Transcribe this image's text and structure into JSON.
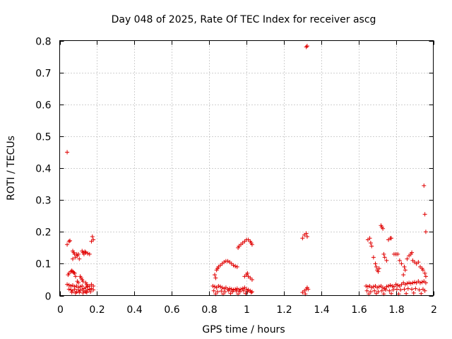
{
  "chart_data": {
    "type": "scatter",
    "title": "Day 048 of 2025, Rate Of TEC Index for receiver ascg",
    "xlabel": "GPS time / hours",
    "ylabel": "ROTI / TECUs",
    "xlim": [
      0,
      2
    ],
    "ylim": [
      0,
      0.8
    ],
    "x_ticks": [
      0,
      0.2,
      0.4,
      0.6,
      0.8,
      1,
      1.2,
      1.4,
      1.6,
      1.8,
      2
    ],
    "x_tick_labels": [
      "0",
      "0.2",
      "0.4",
      "0.6",
      "0.8",
      "1",
      "1.2",
      "1.4",
      "1.6",
      "1.8",
      "2"
    ],
    "y_ticks": [
      0,
      0.1,
      0.2,
      0.3,
      0.4,
      0.5,
      0.6,
      0.7,
      0.8
    ],
    "y_tick_labels": [
      "0",
      "0.1",
      "0.2",
      "0.3",
      "0.4",
      "0.5",
      "0.6",
      "0.7",
      "0.8"
    ],
    "grid": true,
    "marker": "+",
    "color": "#e00000",
    "points": [
      [
        0.04,
        0.45
      ],
      [
        0.04,
        0.16
      ],
      [
        0.05,
        0.17
      ],
      [
        0.055,
        0.172
      ],
      [
        0.045,
        0.065
      ],
      [
        0.05,
        0.07
      ],
      [
        0.06,
        0.075
      ],
      [
        0.065,
        0.078
      ],
      [
        0.07,
        0.075
      ],
      [
        0.075,
        0.072
      ],
      [
        0.08,
        0.07
      ],
      [
        0.085,
        0.06
      ],
      [
        0.07,
        0.14
      ],
      [
        0.075,
        0.135
      ],
      [
        0.08,
        0.13
      ],
      [
        0.085,
        0.12
      ],
      [
        0.07,
        0.115
      ],
      [
        0.09,
        0.13
      ],
      [
        0.095,
        0.125
      ],
      [
        0.1,
        0.13
      ],
      [
        0.105,
        0.115
      ],
      [
        0.12,
        0.14
      ],
      [
        0.125,
        0.135
      ],
      [
        0.13,
        0.13
      ],
      [
        0.135,
        0.138
      ],
      [
        0.14,
        0.135
      ],
      [
        0.15,
        0.132
      ],
      [
        0.16,
        0.13
      ],
      [
        0.17,
        0.17
      ],
      [
        0.175,
        0.185
      ],
      [
        0.18,
        0.175
      ],
      [
        0.11,
        0.06
      ],
      [
        0.115,
        0.055
      ],
      [
        0.12,
        0.05
      ],
      [
        0.125,
        0.045
      ],
      [
        0.1,
        0.04
      ],
      [
        0.095,
        0.045
      ],
      [
        0.14,
        0.04
      ],
      [
        0.145,
        0.035
      ],
      [
        0.15,
        0.03
      ],
      [
        0.04,
        0.035
      ],
      [
        0.05,
        0.033
      ],
      [
        0.06,
        0.03
      ],
      [
        0.07,
        0.032
      ],
      [
        0.08,
        0.028
      ],
      [
        0.09,
        0.03
      ],
      [
        0.1,
        0.025
      ],
      [
        0.11,
        0.028
      ],
      [
        0.12,
        0.03
      ],
      [
        0.13,
        0.022
      ],
      [
        0.14,
        0.025
      ],
      [
        0.15,
        0.028
      ],
      [
        0.16,
        0.03
      ],
      [
        0.17,
        0.035
      ],
      [
        0.18,
        0.03
      ],
      [
        0.05,
        0.02
      ],
      [
        0.06,
        0.018
      ],
      [
        0.07,
        0.015
      ],
      [
        0.08,
        0.02
      ],
      [
        0.09,
        0.012
      ],
      [
        0.1,
        0.018
      ],
      [
        0.11,
        0.015
      ],
      [
        0.12,
        0.02
      ],
      [
        0.13,
        0.015
      ],
      [
        0.14,
        0.012
      ],
      [
        0.15,
        0.018
      ],
      [
        0.16,
        0.02
      ],
      [
        0.17,
        0.022
      ],
      [
        0.18,
        0.018
      ],
      [
        0.065,
        0.01
      ],
      [
        0.085,
        0.008
      ],
      [
        0.105,
        0.01
      ],
      [
        0.125,
        0.008
      ],
      [
        0.145,
        0.01
      ],
      [
        0.165,
        0.012
      ],
      [
        0.83,
        0.065
      ],
      [
        0.835,
        0.055
      ],
      [
        0.84,
        0.08
      ],
      [
        0.845,
        0.085
      ],
      [
        0.85,
        0.09
      ],
      [
        0.86,
        0.095
      ],
      [
        0.87,
        0.1
      ],
      [
        0.88,
        0.105
      ],
      [
        0.89,
        0.108
      ],
      [
        0.9,
        0.108
      ],
      [
        0.91,
        0.105
      ],
      [
        0.92,
        0.1
      ],
      [
        0.93,
        0.095
      ],
      [
        0.94,
        0.092
      ],
      [
        0.95,
        0.09
      ],
      [
        0.955,
        0.15
      ],
      [
        0.96,
        0.155
      ],
      [
        0.97,
        0.16
      ],
      [
        0.98,
        0.165
      ],
      [
        0.99,
        0.17
      ],
      [
        1.0,
        0.175
      ],
      [
        1.01,
        0.175
      ],
      [
        1.02,
        0.17
      ],
      [
        1.025,
        0.165
      ],
      [
        1.03,
        0.16
      ],
      [
        0.99,
        0.06
      ],
      [
        1.0,
        0.065
      ],
      [
        1.005,
        0.07
      ],
      [
        1.01,
        0.06
      ],
      [
        1.02,
        0.055
      ],
      [
        1.03,
        0.05
      ],
      [
        0.82,
        0.03
      ],
      [
        0.83,
        0.028
      ],
      [
        0.84,
        0.025
      ],
      [
        0.85,
        0.03
      ],
      [
        0.86,
        0.028
      ],
      [
        0.87,
        0.025
      ],
      [
        0.88,
        0.022
      ],
      [
        0.89,
        0.025
      ],
      [
        0.9,
        0.02
      ],
      [
        0.91,
        0.022
      ],
      [
        0.92,
        0.02
      ],
      [
        0.93,
        0.018
      ],
      [
        0.94,
        0.02
      ],
      [
        0.95,
        0.022
      ],
      [
        0.96,
        0.018
      ],
      [
        0.97,
        0.02
      ],
      [
        0.98,
        0.022
      ],
      [
        0.99,
        0.025
      ],
      [
        1.0,
        0.02
      ],
      [
        1.01,
        0.018
      ],
      [
        1.02,
        0.015
      ],
      [
        1.03,
        0.012
      ],
      [
        0.825,
        0.015
      ],
      [
        0.845,
        0.012
      ],
      [
        0.865,
        0.014
      ],
      [
        0.885,
        0.012
      ],
      [
        0.905,
        0.015
      ],
      [
        0.925,
        0.012
      ],
      [
        0.945,
        0.014
      ],
      [
        0.965,
        0.012
      ],
      [
        0.985,
        0.015
      ],
      [
        1.005,
        0.012
      ],
      [
        1.025,
        0.01
      ],
      [
        0.835,
        0.005
      ],
      [
        0.875,
        0.005
      ],
      [
        0.915,
        0.006
      ],
      [
        0.955,
        0.005
      ],
      [
        0.995,
        0.006
      ],
      [
        1.32,
        0.78
      ],
      [
        1.325,
        0.783
      ],
      [
        1.3,
        0.18
      ],
      [
        1.31,
        0.19
      ],
      [
        1.32,
        0.195
      ],
      [
        1.325,
        0.185
      ],
      [
        1.3,
        0.01
      ],
      [
        1.31,
        0.015
      ],
      [
        1.32,
        0.02
      ],
      [
        1.325,
        0.025
      ],
      [
        1.33,
        0.02
      ],
      [
        1.315,
        0.005
      ],
      [
        1.65,
        0.175
      ],
      [
        1.66,
        0.18
      ],
      [
        1.665,
        0.165
      ],
      [
        1.67,
        0.155
      ],
      [
        1.68,
        0.12
      ],
      [
        1.69,
        0.1
      ],
      [
        1.695,
        0.09
      ],
      [
        1.7,
        0.08
      ],
      [
        1.705,
        0.075
      ],
      [
        1.71,
        0.085
      ],
      [
        1.72,
        0.22
      ],
      [
        1.725,
        0.215
      ],
      [
        1.73,
        0.21
      ],
      [
        1.735,
        0.13
      ],
      [
        1.74,
        0.12
      ],
      [
        1.75,
        0.11
      ],
      [
        1.76,
        0.175
      ],
      [
        1.77,
        0.18
      ],
      [
        1.775,
        0.18
      ],
      [
        1.79,
        0.13
      ],
      [
        1.8,
        0.13
      ],
      [
        1.81,
        0.13
      ],
      [
        1.82,
        0.11
      ],
      [
        1.83,
        0.1
      ],
      [
        1.84,
        0.065
      ],
      [
        1.845,
        0.09
      ],
      [
        1.85,
        0.08
      ],
      [
        1.86,
        0.115
      ],
      [
        1.87,
        0.125
      ],
      [
        1.88,
        0.13
      ],
      [
        1.885,
        0.135
      ],
      [
        1.89,
        0.11
      ],
      [
        1.9,
        0.105
      ],
      [
        1.91,
        0.1
      ],
      [
        1.92,
        0.105
      ],
      [
        1.93,
        0.09
      ],
      [
        1.94,
        0.085
      ],
      [
        1.945,
        0.08
      ],
      [
        1.95,
        0.345
      ],
      [
        1.955,
        0.255
      ],
      [
        1.96,
        0.2
      ],
      [
        1.955,
        0.07
      ],
      [
        1.96,
        0.06
      ],
      [
        1.64,
        0.03
      ],
      [
        1.65,
        0.028
      ],
      [
        1.66,
        0.03
      ],
      [
        1.67,
        0.025
      ],
      [
        1.68,
        0.028
      ],
      [
        1.69,
        0.03
      ],
      [
        1.7,
        0.025
      ],
      [
        1.71,
        0.028
      ],
      [
        1.72,
        0.03
      ],
      [
        1.73,
        0.025
      ],
      [
        1.74,
        0.022
      ],
      [
        1.75,
        0.028
      ],
      [
        1.76,
        0.03
      ],
      [
        1.77,
        0.032
      ],
      [
        1.78,
        0.03
      ],
      [
        1.79,
        0.028
      ],
      [
        1.8,
        0.035
      ],
      [
        1.81,
        0.032
      ],
      [
        1.82,
        0.03
      ],
      [
        1.83,
        0.035
      ],
      [
        1.84,
        0.04
      ],
      [
        1.85,
        0.035
      ],
      [
        1.86,
        0.038
      ],
      [
        1.87,
        0.04
      ],
      [
        1.88,
        0.038
      ],
      [
        1.89,
        0.04
      ],
      [
        1.9,
        0.042
      ],
      [
        1.91,
        0.04
      ],
      [
        1.92,
        0.045
      ],
      [
        1.93,
        0.04
      ],
      [
        1.94,
        0.042
      ],
      [
        1.95,
        0.045
      ],
      [
        1.96,
        0.04
      ],
      [
        1.645,
        0.015
      ],
      [
        1.665,
        0.012
      ],
      [
        1.685,
        0.015
      ],
      [
        1.705,
        0.012
      ],
      [
        1.725,
        0.015
      ],
      [
        1.745,
        0.018
      ],
      [
        1.765,
        0.015
      ],
      [
        1.785,
        0.018
      ],
      [
        1.805,
        0.02
      ],
      [
        1.825,
        0.018
      ],
      [
        1.845,
        0.02
      ],
      [
        1.865,
        0.022
      ],
      [
        1.885,
        0.02
      ],
      [
        1.905,
        0.022
      ],
      [
        1.925,
        0.018
      ],
      [
        1.945,
        0.02
      ],
      [
        1.955,
        0.015
      ],
      [
        1.655,
        0.005
      ],
      [
        1.695,
        0.006
      ],
      [
        1.735,
        0.005
      ],
      [
        1.775,
        0.006
      ],
      [
        1.815,
        0.005
      ],
      [
        1.855,
        0.006
      ],
      [
        1.895,
        0.008
      ],
      [
        1.935,
        0.006
      ]
    ]
  }
}
